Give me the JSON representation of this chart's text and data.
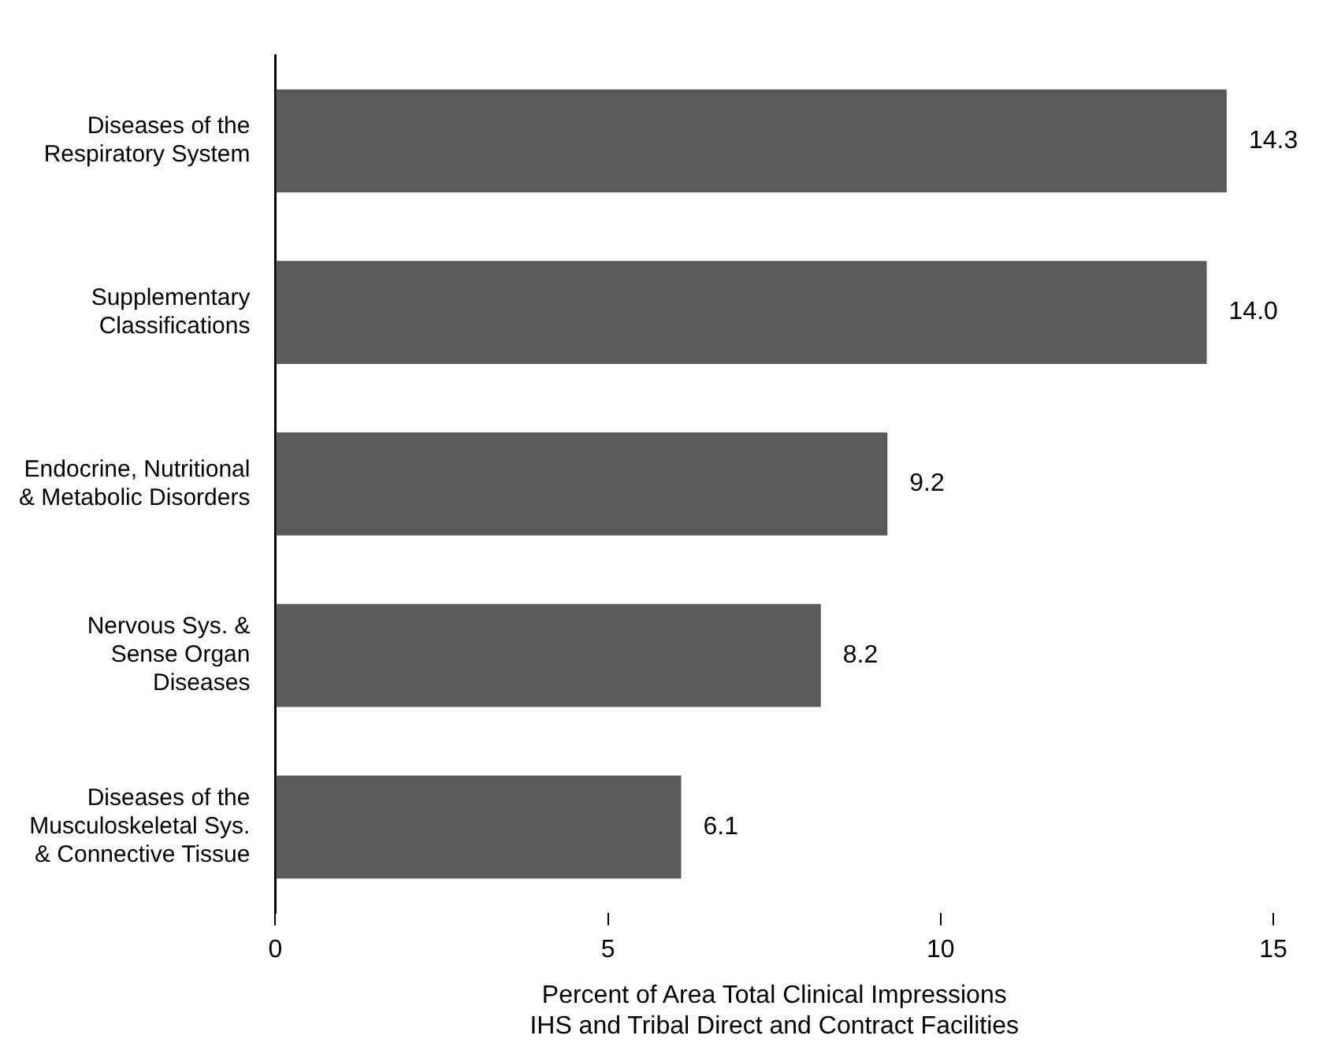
{
  "chart_data": {
    "type": "bar",
    "orientation": "horizontal",
    "categories": [
      "Diseases of the\nRespiratory System",
      "Supplementary\nClassifications",
      "Endocrine, Nutritional\n& Metabolic Disorders",
      "Nervous Sys. &\nSense Organ\nDiseases",
      "Diseases of the\nMusculoskeletal Sys.\n& Connective Tissue"
    ],
    "values": [
      14.3,
      14.0,
      9.2,
      8.2,
      6.1
    ],
    "value_labels": [
      "14.3",
      "14.0",
      "9.2",
      "8.2",
      "6.1"
    ],
    "color": "#5a5a5a",
    "xlim": [
      0,
      15
    ],
    "xticks": [
      0,
      5,
      10,
      15
    ],
    "xlabel": "Percent of Area Total Clinical Impressions\nIHS and Tribal Direct and Contract Facilities",
    "grid": false,
    "legend": false
  }
}
